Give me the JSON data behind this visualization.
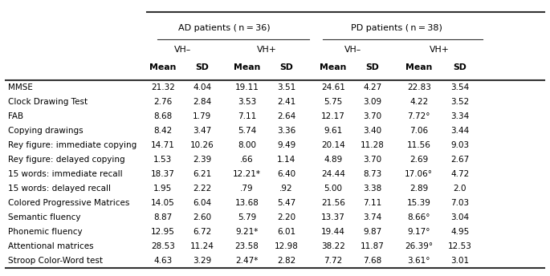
{
  "col_header_level1": [
    "AD patients (n = 36)",
    "PD patients (n = 38)"
  ],
  "col_header_level2": [
    "VH–",
    "VH+",
    "VH–",
    "VH+"
  ],
  "col_header_level3": [
    "Mean",
    "SD",
    "Mean",
    "SD",
    "Mean",
    "SD",
    "Mean",
    "SD"
  ],
  "rows": [
    [
      "MMSE",
      "21.32",
      "4.04",
      "19.11",
      "3.51",
      "24.61",
      "4.27",
      "22.83",
      "3.54"
    ],
    [
      "Clock Drawing Test",
      "2.76",
      "2.84",
      "3.53",
      "2.41",
      "5.75",
      "3.09",
      "4.22",
      "3.52"
    ],
    [
      "FAB",
      "8.68",
      "1.79",
      "7.11",
      "2.64",
      "12.17",
      "3.70",
      "7.72°",
      "3.34"
    ],
    [
      "Copying drawings",
      "8.42",
      "3.47",
      "5.74",
      "3.36",
      "9.61",
      "3.40",
      "7.06",
      "3.44"
    ],
    [
      "Rey figure: immediate copying",
      "14.71",
      "10.26",
      "8.00",
      "9.49",
      "20.14",
      "11.28",
      "11.56",
      "9.03"
    ],
    [
      "Rey figure: delayed copying",
      "1.53",
      "2.39",
      ".66",
      "1.14",
      "4.89",
      "3.70",
      "2.69",
      "2.67"
    ],
    [
      "15 words: immediate recall",
      "18.37",
      "6.21",
      "12.21*",
      "6.40",
      "24.44",
      "8.73",
      "17.06°",
      "4.72"
    ],
    [
      "15 words: delayed recall",
      "1.95",
      "2.22",
      ".79",
      ".92",
      "5.00",
      "3.38",
      "2.89",
      "2.0"
    ],
    [
      "Colored Progressive Matrices",
      "14.05",
      "6.04",
      "13.68",
      "5.47",
      "21.56",
      "7.11",
      "15.39",
      "7.03"
    ],
    [
      "Semantic fluency",
      "8.87",
      "2.60",
      "5.79",
      "2.20",
      "13.37",
      "3.74",
      "8.66°",
      "3.04"
    ],
    [
      "Phonemic fluency",
      "12.95",
      "6.72",
      "9.21*",
      "6.01",
      "19.44",
      "9.87",
      "9.17°",
      "4.95"
    ],
    [
      "Attentional matrices",
      "28.53",
      "11.24",
      "23.58",
      "12.98",
      "38.22",
      "11.87",
      "26.39°",
      "12.53"
    ],
    [
      "Stroop Color-Word test",
      "4.63",
      "3.29",
      "2.47*",
      "2.82",
      "7.72",
      "7.68",
      "3.61°",
      "3.01"
    ]
  ],
  "bg_color": "#ffffff",
  "text_color": "#000000"
}
